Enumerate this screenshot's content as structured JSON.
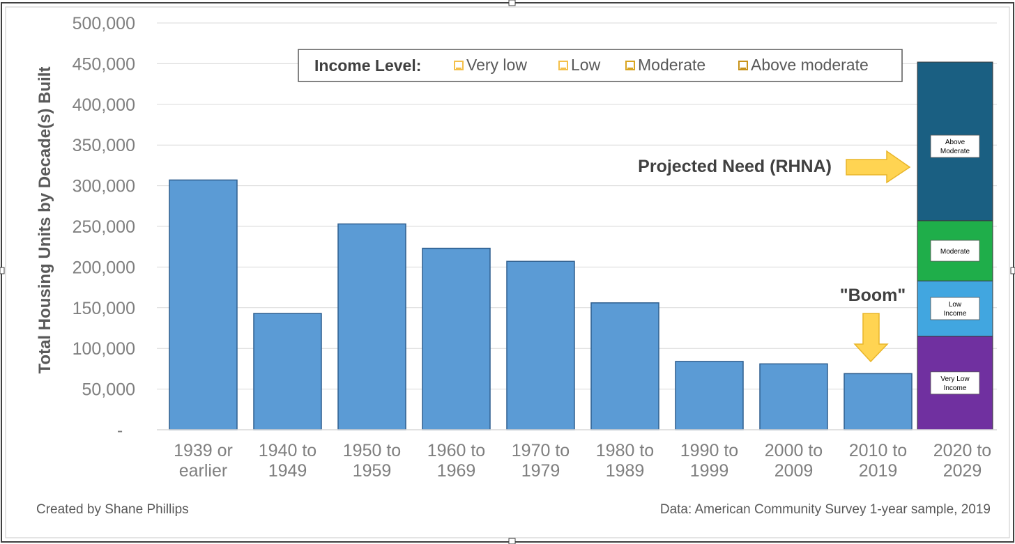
{
  "chart_data": {
    "type": "bar",
    "title": "",
    "ylabel": "Total Housing Units by Decade(s) Built",
    "xlabel": "",
    "ylim": [
      0,
      500000
    ],
    "yticks": [
      {
        "value": 0,
        "label": "-"
      },
      {
        "value": 50000,
        "label": "50,000"
      },
      {
        "value": 100000,
        "label": "100,000"
      },
      {
        "value": 150000,
        "label": "150,000"
      },
      {
        "value": 200000,
        "label": "200,000"
      },
      {
        "value": 250000,
        "label": "250,000"
      },
      {
        "value": 300000,
        "label": "300,000"
      },
      {
        "value": 350000,
        "label": "350,000"
      },
      {
        "value": 400000,
        "label": "400,000"
      },
      {
        "value": 450000,
        "label": "450,000"
      },
      {
        "value": 500000,
        "label": "500,000"
      }
    ],
    "categories": [
      [
        "1939 or",
        "earlier"
      ],
      [
        "1940 to",
        "1949"
      ],
      [
        "1950 to",
        "1959"
      ],
      [
        "1960 to",
        "1969"
      ],
      [
        "1970 to",
        "1979"
      ],
      [
        "1980 to",
        "1989"
      ],
      [
        "1990 to",
        "1999"
      ],
      [
        "2000 to",
        "2009"
      ],
      [
        "2010 to",
        "2019"
      ],
      [
        "2020 to",
        "2029"
      ]
    ],
    "values": [
      307000,
      143000,
      253000,
      223000,
      207000,
      156000,
      84000,
      81000,
      69000,
      null
    ],
    "bar_color": "#5b9bd5",
    "grid": true,
    "legend": {
      "placement": "top",
      "title": "Income Level:",
      "entries": [
        {
          "name": "Very low",
          "color": "#f4c04a"
        },
        {
          "name": "Low",
          "color": "#f4c04a"
        },
        {
          "name": "Moderate",
          "color": "#d9a520"
        },
        {
          "name": "Above moderate",
          "color": "#c8931a"
        }
      ]
    },
    "projected_need": {
      "category_index": 9,
      "segments": [
        {
          "name": "Very Low Income",
          "lines": [
            "Very Low",
            "Income"
          ],
          "value": 115000,
          "color": "#7030a0"
        },
        {
          "name": "Low Income",
          "lines": [
            "Low",
            "Income"
          ],
          "value": 68000,
          "color": "#41a6e0"
        },
        {
          "name": "Moderate",
          "lines": [
            "Moderate"
          ],
          "value": 74000,
          "color": "#1fae4a"
        },
        {
          "name": "Above Moderate",
          "lines": [
            "Above",
            "Moderate"
          ],
          "value": 195000,
          "color": "#1a5f82"
        }
      ]
    },
    "annotations": [
      {
        "text": "Projected Need (RHNA)",
        "arrow": "right"
      },
      {
        "text": "\"Boom\"",
        "arrow": "down"
      }
    ]
  },
  "footer": {
    "left": "Created by Shane Phillips",
    "right": "Data: American Community Survey 1-year sample, 2019"
  }
}
